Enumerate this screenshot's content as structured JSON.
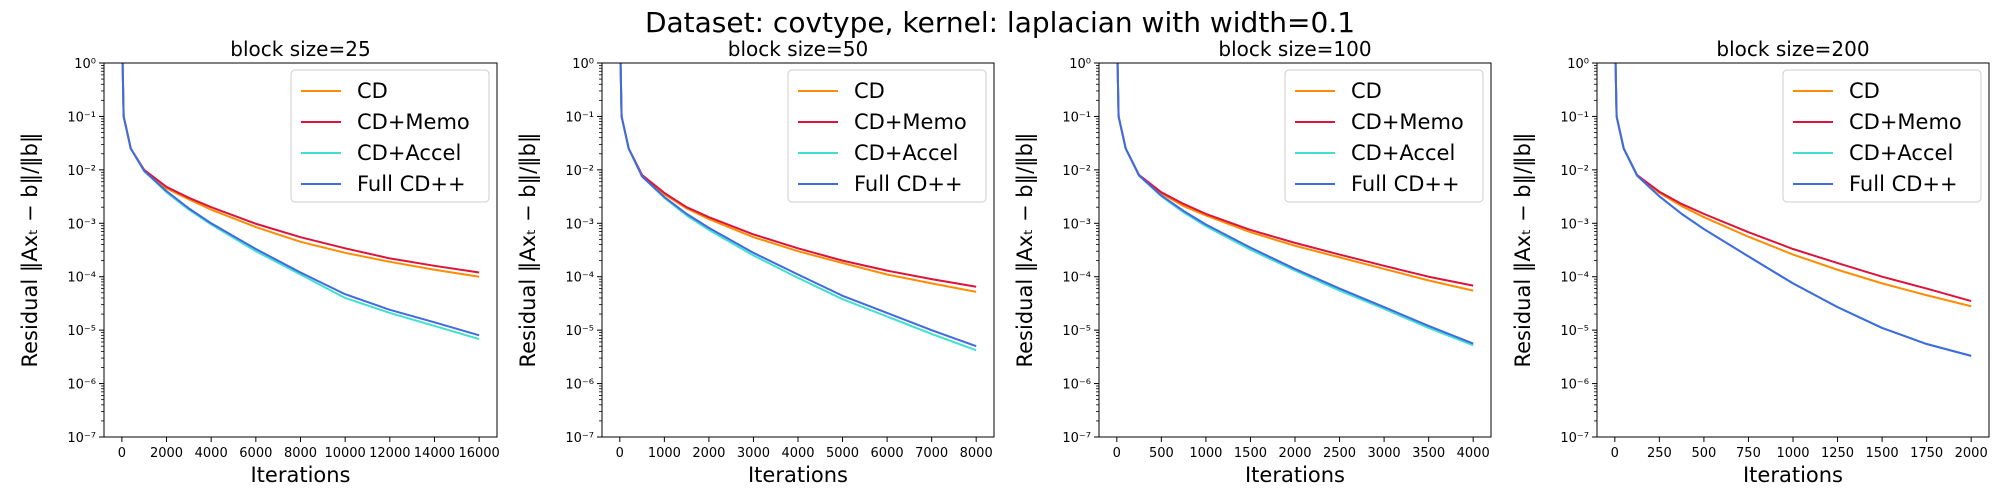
{
  "figure": {
    "suptitle": "Dataset: covtype, kernel: laplacian with width=0.1"
  },
  "colors": {
    "CD": "#ff8c00",
    "CD+Memo": "#dc143c",
    "CD+Accel": "#40e0d0",
    "Full CD++": "#4169e1"
  },
  "chart_data": [
    {
      "type": "line",
      "title": "block size=25",
      "xlabel": "Iterations",
      "ylabel": "Residual ‖Axₜ − b‖/‖b‖",
      "yscale": "log",
      "ylim": [
        1e-07,
        1
      ],
      "xlim": [
        -800,
        16800
      ],
      "xticks": [
        0,
        2000,
        4000,
        6000,
        8000,
        10000,
        12000,
        14000,
        16000
      ],
      "yticks": [
        1e-07,
        1e-06,
        1e-05,
        0.0001,
        0.001,
        0.01,
        0.1,
        1
      ],
      "ytick_labels": [
        "10⁻⁷",
        "10⁻⁶",
        "10⁻⁵",
        "10⁻⁴",
        "10⁻³",
        "10⁻²",
        "10⁻¹",
        "10⁰"
      ],
      "legend": "top-right",
      "series": [
        {
          "name": "CD",
          "x": [
            0,
            80,
            400,
            1000,
            2000,
            3000,
            4000,
            6000,
            8000,
            10000,
            12000,
            14000,
            16000
          ],
          "y": [
            5,
            0.1,
            0.025,
            0.01,
            0.0045,
            0.0028,
            0.0018,
            0.00085,
            0.00045,
            0.00028,
            0.00019,
            0.000135,
            0.0001
          ]
        },
        {
          "name": "CD+Memo",
          "x": [
            0,
            80,
            400,
            1000,
            2000,
            3000,
            4000,
            6000,
            8000,
            10000,
            12000,
            14000,
            16000
          ],
          "y": [
            5,
            0.1,
            0.025,
            0.01,
            0.0048,
            0.003,
            0.002,
            0.00098,
            0.00055,
            0.00034,
            0.00022,
            0.00016,
            0.00012
          ]
        },
        {
          "name": "CD+Accel",
          "x": [
            0,
            80,
            400,
            1000,
            2000,
            3000,
            4000,
            6000,
            8000,
            10000,
            12000,
            14000,
            16000
          ],
          "y": [
            5,
            0.1,
            0.025,
            0.0095,
            0.0038,
            0.0018,
            0.00095,
            0.0003,
            0.00011,
            4e-05,
            2.1e-05,
            1.2e-05,
            6.8e-06
          ]
        },
        {
          "name": "Full CD++",
          "x": [
            0,
            80,
            400,
            1000,
            2000,
            3000,
            4000,
            6000,
            8000,
            10000,
            12000,
            14000,
            16000
          ],
          "y": [
            5,
            0.1,
            0.025,
            0.0095,
            0.004,
            0.0019,
            0.001,
            0.00033,
            0.00012,
            4.7e-05,
            2.4e-05,
            1.4e-05,
            8e-06
          ]
        }
      ]
    },
    {
      "type": "line",
      "title": "block size=50",
      "xlabel": "Iterations",
      "ylabel": "Residual ‖Axₜ − b‖/‖b‖",
      "yscale": "log",
      "ylim": [
        1e-07,
        1
      ],
      "xlim": [
        -400,
        8400
      ],
      "xticks": [
        0,
        1000,
        2000,
        3000,
        4000,
        5000,
        6000,
        7000,
        8000
      ],
      "yticks": [
        1e-07,
        1e-06,
        1e-05,
        0.0001,
        0.001,
        0.01,
        0.1,
        1
      ],
      "ytick_labels": [
        "10⁻⁷",
        "10⁻⁶",
        "10⁻⁵",
        "10⁻⁴",
        "10⁻³",
        "10⁻²",
        "10⁻¹",
        "10⁰"
      ],
      "legend": "top-right",
      "series": [
        {
          "name": "CD",
          "x": [
            0,
            40,
            200,
            500,
            1000,
            1500,
            2000,
            3000,
            4000,
            5000,
            6000,
            7000,
            8000
          ],
          "y": [
            5,
            0.1,
            0.025,
            0.008,
            0.0035,
            0.0019,
            0.0012,
            0.00055,
            0.0003,
            0.00018,
            0.00011,
            7.5e-05,
            5.2e-05
          ]
        },
        {
          "name": "CD+Memo",
          "x": [
            0,
            40,
            200,
            500,
            1000,
            1500,
            2000,
            3000,
            4000,
            5000,
            6000,
            7000,
            8000
          ],
          "y": [
            5,
            0.1,
            0.025,
            0.008,
            0.0037,
            0.002,
            0.0013,
            0.00062,
            0.00034,
            0.0002,
            0.00013,
            9e-05,
            6.5e-05
          ]
        },
        {
          "name": "CD+Accel",
          "x": [
            0,
            40,
            200,
            500,
            1000,
            1500,
            2000,
            3000,
            4000,
            5000,
            6000,
            7000,
            8000
          ],
          "y": [
            5,
            0.1,
            0.025,
            0.0075,
            0.003,
            0.0014,
            0.00075,
            0.00025,
            9.5e-05,
            3.8e-05,
            1.8e-05,
            8.5e-06,
            4.2e-06
          ]
        },
        {
          "name": "Full CD++",
          "x": [
            0,
            40,
            200,
            500,
            1000,
            1500,
            2000,
            3000,
            4000,
            5000,
            6000,
            7000,
            8000
          ],
          "y": [
            5,
            0.1,
            0.025,
            0.0075,
            0.0031,
            0.0015,
            0.00082,
            0.00028,
            0.00011,
            4.4e-05,
            2.1e-05,
            1e-05,
            5e-06
          ]
        }
      ]
    },
    {
      "type": "line",
      "title": "block size=100",
      "xlabel": "Iterations",
      "ylabel": "Residual ‖Axₜ − b‖/‖b‖",
      "yscale": "log",
      "ylim": [
        1e-07,
        1
      ],
      "xlim": [
        -200,
        4200
      ],
      "xticks": [
        0,
        500,
        1000,
        1500,
        2000,
        2500,
        3000,
        3500,
        4000
      ],
      "yticks": [
        1e-07,
        1e-06,
        1e-05,
        0.0001,
        0.001,
        0.01,
        0.1,
        1
      ],
      "ytick_labels": [
        "10⁻⁷",
        "10⁻⁶",
        "10⁻⁵",
        "10⁻⁴",
        "10⁻³",
        "10⁻²",
        "10⁻¹",
        "10⁰"
      ],
      "legend": "top-right",
      "series": [
        {
          "name": "CD",
          "x": [
            0,
            20,
            100,
            250,
            500,
            750,
            1000,
            1500,
            2000,
            2500,
            3000,
            3500,
            4000
          ],
          "y": [
            5,
            0.1,
            0.025,
            0.008,
            0.0036,
            0.0021,
            0.0014,
            0.00068,
            0.00038,
            0.00023,
            0.00014,
            8.5e-05,
            5.5e-05
          ]
        },
        {
          "name": "CD+Memo",
          "x": [
            0,
            20,
            100,
            250,
            500,
            750,
            1000,
            1500,
            2000,
            2500,
            3000,
            3500,
            4000
          ],
          "y": [
            5,
            0.1,
            0.025,
            0.008,
            0.0038,
            0.0023,
            0.0015,
            0.00075,
            0.00043,
            0.00026,
            0.00016,
            0.0001,
            6.8e-05
          ]
        },
        {
          "name": "CD+Accel",
          "x": [
            0,
            20,
            100,
            250,
            500,
            750,
            1000,
            1500,
            2000,
            2500,
            3000,
            3500,
            4000
          ],
          "y": [
            5,
            0.1,
            0.025,
            0.0078,
            0.0032,
            0.0016,
            0.00088,
            0.00032,
            0.00013,
            5.5e-05,
            2.5e-05,
            1.1e-05,
            5.2e-06
          ]
        },
        {
          "name": "Full CD++",
          "x": [
            0,
            20,
            100,
            250,
            500,
            750,
            1000,
            1500,
            2000,
            2500,
            3000,
            3500,
            4000
          ],
          "y": [
            5,
            0.1,
            0.025,
            0.0078,
            0.0033,
            0.0017,
            0.00095,
            0.00035,
            0.00014,
            6e-05,
            2.7e-05,
            1.2e-05,
            5.6e-06
          ]
        }
      ]
    },
    {
      "type": "line",
      "title": "block size=200",
      "xlabel": "Iterations",
      "ylabel": "Residual ‖Axₜ − b‖/‖b‖",
      "yscale": "log",
      "ylim": [
        1e-07,
        1
      ],
      "xlim": [
        -100,
        2100
      ],
      "xticks": [
        0,
        250,
        500,
        750,
        1000,
        1250,
        1500,
        1750,
        2000
      ],
      "yticks": [
        1e-07,
        1e-06,
        1e-05,
        0.0001,
        0.001,
        0.01,
        0.1,
        1
      ],
      "ytick_labels": [
        "10⁻⁷",
        "10⁻⁶",
        "10⁻⁵",
        "10⁻⁴",
        "10⁻³",
        "10⁻²",
        "10⁻¹",
        "10⁰"
      ],
      "legend": "top-right",
      "series": [
        {
          "name": "CD",
          "x": [
            0,
            10,
            50,
            125,
            250,
            375,
            500,
            750,
            1000,
            1250,
            1500,
            1750,
            2000
          ],
          "y": [
            5,
            0.1,
            0.025,
            0.008,
            0.0037,
            0.0021,
            0.0013,
            0.00056,
            0.00026,
            0.000135,
            7.5e-05,
            4.5e-05,
            2.8e-05
          ]
        },
        {
          "name": "CD+Memo",
          "x": [
            0,
            10,
            50,
            125,
            250,
            375,
            500,
            750,
            1000,
            1250,
            1500,
            1750,
            2000
          ],
          "y": [
            5,
            0.1,
            0.025,
            0.008,
            0.0039,
            0.0023,
            0.0015,
            0.00068,
            0.00033,
            0.00018,
            0.0001,
            6e-05,
            3.5e-05
          ]
        },
        {
          "name": "CD+Accel",
          "x": [
            0,
            10,
            50,
            125,
            250,
            375,
            500,
            750,
            1000,
            1250,
            1500,
            1750,
            2000
          ],
          "y": [
            5,
            0.1,
            0.025,
            0.0078,
            0.0032,
            0.0015,
            0.00078,
            0.00024,
            7.5e-05,
            2.7e-05,
            1.1e-05,
            5.5e-06,
            3.3e-06
          ]
        },
        {
          "name": "Full CD++",
          "x": [
            0,
            10,
            50,
            125,
            250,
            375,
            500,
            750,
            1000,
            1250,
            1500,
            1750,
            2000
          ],
          "y": [
            5,
            0.1,
            0.025,
            0.0078,
            0.0032,
            0.0015,
            0.00078,
            0.00024,
            7.5e-05,
            2.7e-05,
            1.1e-05,
            5.5e-06,
            3.3e-06
          ]
        }
      ]
    }
  ]
}
